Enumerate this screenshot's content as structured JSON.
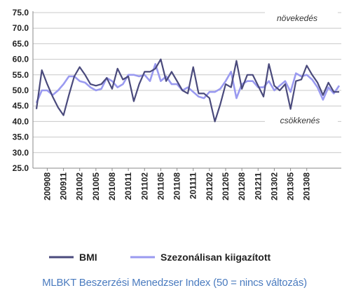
{
  "chart_data": {
    "type": "line",
    "ylim": [
      25,
      75
    ],
    "y_ticks": [
      "75.0",
      "70.0",
      "65.0",
      "60.0",
      "55.0",
      "50.0",
      "45.0",
      "40.0",
      "35.0",
      "30.0",
      "25.0"
    ],
    "x_tick_labels": [
      "200908",
      "200911",
      "201002",
      "201005",
      "201008",
      "201011",
      "201102",
      "201105",
      "201108",
      "201111",
      "201202",
      "201205",
      "201208",
      "201211",
      "201302",
      "201305",
      "201308"
    ],
    "grid": true,
    "legend_position": "bottom",
    "annotations": {
      "top": "növekedés",
      "bottom": "csökkenés"
    },
    "series": [
      {
        "name": "BMI",
        "color": "#4a4a7c",
        "values": [
          44,
          56.5,
          52,
          48,
          44.5,
          42,
          48.5,
          54.5,
          57.5,
          55,
          52,
          51.5,
          52,
          54,
          50.5,
          57,
          53.5,
          54.5,
          46.5,
          52,
          56,
          56,
          57,
          60,
          53,
          56,
          53,
          50,
          49,
          57.5,
          49,
          49,
          47.5,
          40,
          45.5,
          52,
          51,
          59.5,
          50.5,
          55,
          55,
          51.5,
          48,
          58.5,
          51.5,
          50,
          52,
          44,
          53,
          53.5,
          58,
          55,
          52.5,
          48.5,
          52.5,
          49.5,
          49.5
        ]
      },
      {
        "name": "Szezonálisan kiigazított",
        "color": "#9a9af0",
        "values": [
          46,
          50,
          50,
          48.5,
          50,
          52,
          54.5,
          54.5,
          53,
          52.5,
          51,
          50,
          50.5,
          54,
          53,
          51,
          52,
          55,
          55,
          54.5,
          55,
          53,
          58.5,
          53,
          54.5,
          52,
          52,
          50,
          51,
          49.5,
          48,
          47.5,
          49.5,
          49.5,
          50.5,
          53,
          56,
          47.5,
          52,
          53,
          53,
          51,
          51,
          53,
          50,
          51.5,
          53,
          49.5,
          55.5,
          54.5,
          55,
          53.5,
          51,
          47,
          51,
          49,
          51.5
        ]
      }
    ]
  },
  "caption": "MLBKT Beszerzési Menedzser Index (50 = nincs változás)"
}
